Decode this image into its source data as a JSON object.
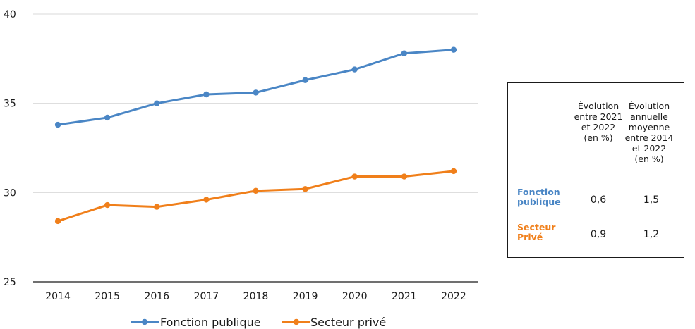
{
  "colors": {
    "fonction_publique": "#4a86c5",
    "secteur_prive": "#f07f1a",
    "grid": "#d9d9d9",
    "axis": "#1a1a1a"
  },
  "chart_data": {
    "type": "line",
    "x": [
      "2014",
      "2015",
      "2016",
      "2017",
      "2018",
      "2019",
      "2020",
      "2021",
      "2022"
    ],
    "ylim": [
      25,
      40
    ],
    "yticks": [
      "25",
      "30",
      "35",
      "40"
    ],
    "grid": true,
    "legend_position": "bottom",
    "series": [
      {
        "name": "Fonction publique",
        "color": "#4a86c5",
        "values": [
          33.8,
          34.2,
          35.0,
          35.5,
          35.6,
          36.3,
          36.9,
          37.8,
          38.0
        ]
      },
      {
        "name": "Secteur privé",
        "color": "#f07f1a",
        "values": [
          28.4,
          29.3,
          29.2,
          29.6,
          30.1,
          30.2,
          30.9,
          30.9,
          31.2
        ]
      }
    ]
  },
  "stats_table": {
    "headers": [
      "Évolution entre 2021 et 2022 (en %)",
      "Évolution annuelle moyenne entre 2014 et 2022 (en %)"
    ],
    "header_lines": [
      [
        "Évolution",
        "entre 2021",
        "et 2022",
        "(en %)"
      ],
      [
        "Évolution",
        "annuelle",
        "moyenne",
        "entre 2014",
        "et 2022",
        "(en %)"
      ]
    ],
    "rows": [
      {
        "label": "Fonction publique",
        "label_lines": [
          "Fonction",
          "publique"
        ],
        "color": "#4a86c5",
        "values": [
          "0,6",
          "1,5"
        ]
      },
      {
        "label": "Secteur Privé",
        "label_lines": [
          "Secteur",
          "Privé"
        ],
        "color": "#f07f1a",
        "values": [
          "0,9",
          "1,2"
        ]
      }
    ]
  }
}
